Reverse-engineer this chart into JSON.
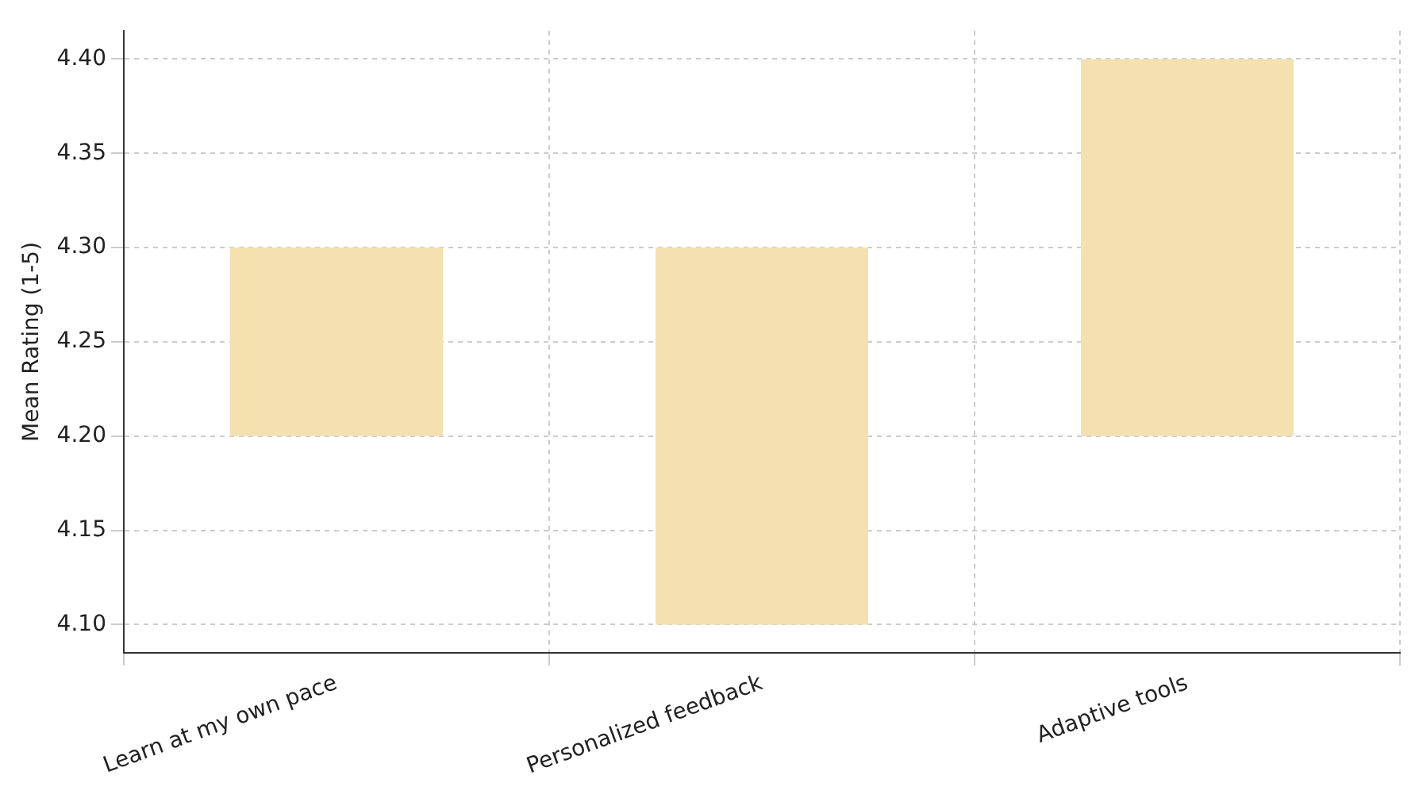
{
  "chart_data": {
    "type": "bar",
    "ylabel": "Mean Rating (1-5)",
    "categories": [
      "Learn at my own pace",
      "Personalized feedback",
      "Adaptive tools"
    ],
    "base": [
      4.2,
      4.1,
      4.2
    ],
    "values": [
      0.1,
      0.2,
      0.2
    ],
    "color": "#f5e0b0",
    "ylim": [
      4.085,
      4.415
    ],
    "yticks": [
      {
        "value": 4.1,
        "label": "4.10"
      },
      {
        "value": 4.15,
        "label": "4.15"
      },
      {
        "value": 4.2,
        "label": "4.20"
      },
      {
        "value": 4.25,
        "label": "4.25"
      },
      {
        "value": 4.3,
        "label": "4.30"
      },
      {
        "value": 4.35,
        "label": "4.35"
      },
      {
        "value": 4.4,
        "label": "4.40"
      }
    ],
    "grid": true
  }
}
